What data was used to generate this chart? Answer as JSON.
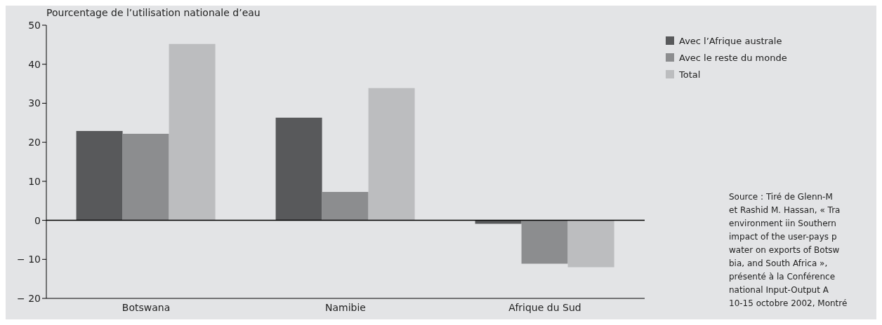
{
  "chart_data": {
    "type": "bar",
    "ylabel": "Pourcentage de l’utilisation nationale d’eau",
    "categories": [
      "Botswana",
      "Namibie",
      "Afrique du Sud"
    ],
    "series": [
      {
        "name": "Avec l’Afrique australe",
        "color": "#58595b",
        "values": [
          22.9,
          26.3,
          -0.9
        ]
      },
      {
        "name": "Avec le reste du monde",
        "color": "#8c8d8f",
        "values": [
          22.2,
          7.3,
          -11.1
        ]
      },
      {
        "name": "Total",
        "color": "#bcbdbf",
        "values": [
          45.2,
          33.9,
          -12.0
        ]
      }
    ],
    "ylim": [
      -20,
      50
    ],
    "yticks": [
      {
        "value": -20,
        "label": "− 20"
      },
      {
        "value": -10,
        "label": "− 10"
      },
      0,
      10,
      20,
      30,
      40,
      50
    ],
    "ref_lines": [
      {
        "axis": "y",
        "value": 0,
        "label": null,
        "color": "#000000"
      }
    ],
    "grid": false,
    "legend": "right",
    "annotations": [
      "Source : Tiré de Glenn-M\net Rashid M. Hassan, « Tra\nenvironment iin Southern\nimpact of the user-pays p\nwater on exports of Botsw\nbia, and South Africa », \nprésenté à la Conférence \nnational Input-Output A\n10-15 octobre 2002, Montré"
    ]
  }
}
